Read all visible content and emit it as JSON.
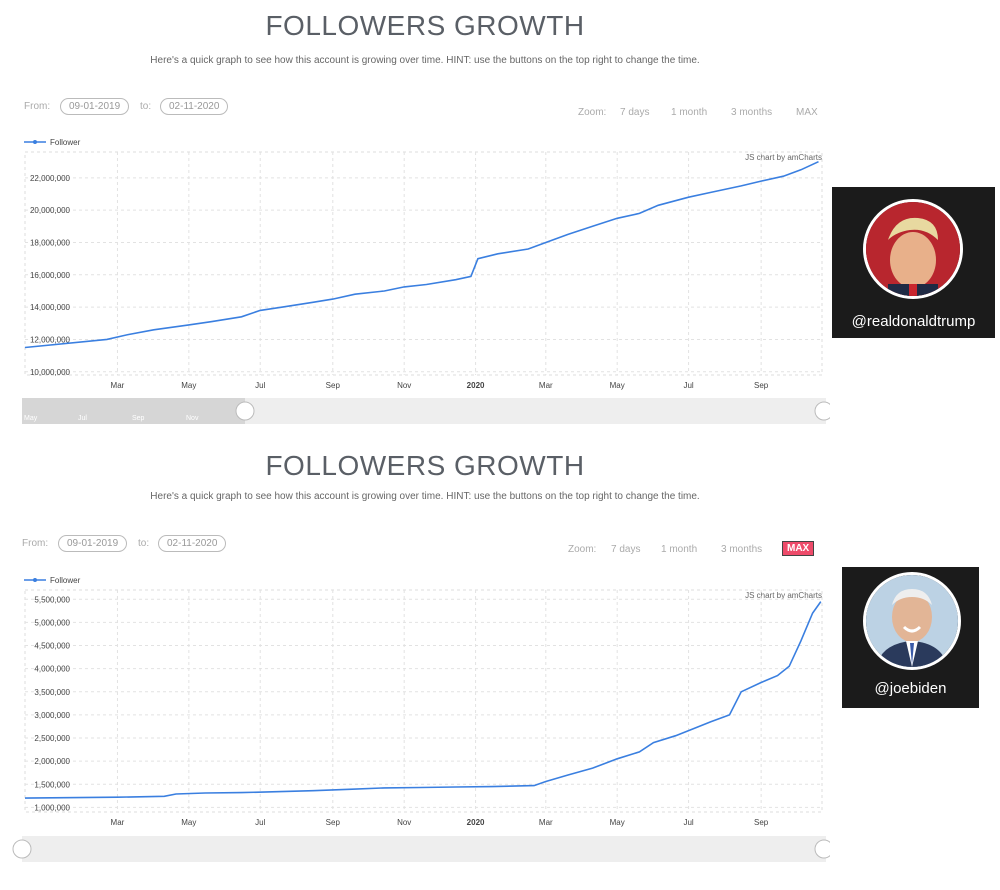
{
  "panels": [
    {
      "title": "FOLLOWERS GROWTH",
      "subtitle": "Here's a quick graph to see how this account is growing over time. HINT: use the buttons on the top right to change the time.",
      "from_label": "From:",
      "from_date": "09-01-2019",
      "to_label": "to:",
      "to_date": "02-11-2020",
      "zoom_label": "Zoom:",
      "zoom_options": [
        "7 days",
        "1 month",
        "3 months",
        "MAX"
      ],
      "active_zoom": "",
      "credit": "JS chart by amCharts",
      "scrollbar_labels": [
        "May",
        "Jul",
        "Sep",
        "Nov"
      ],
      "avatar_handle": "@realdonaldtrump",
      "avatar_bg": "#8a1620",
      "chart_data": {
        "type": "line",
        "title": "",
        "xlabel": "",
        "ylabel": "",
        "legend": "top-left",
        "grid": true,
        "series": [
          {
            "name": "Follower",
            "color": "#3a7fe0",
            "x": [
              "2019-02-01",
              "2019-02-20",
              "2019-03-10",
              "2019-04-01",
              "2019-05-01",
              "2019-05-20",
              "2019-06-15",
              "2019-07-01",
              "2019-07-20",
              "2019-08-15",
              "2019-09-01",
              "2019-09-20",
              "2019-10-15",
              "2019-11-01",
              "2019-11-20",
              "2019-12-15",
              "2019-12-28",
              "2020-01-03",
              "2020-01-20",
              "2020-02-15",
              "2020-03-01",
              "2020-03-20",
              "2020-04-10",
              "2020-05-01",
              "2020-05-20",
              "2020-06-05",
              "2020-07-01",
              "2020-07-20",
              "2020-08-15",
              "2020-09-01",
              "2020-09-20",
              "2020-10-05",
              "2020-10-20"
            ],
            "y": [
              11500000,
              12000000,
              12300000,
              12600000,
              12900000,
              13100000,
              13400000,
              13800000,
              14000000,
              14300000,
              14500000,
              14800000,
              15000000,
              15250000,
              15400000,
              15700000,
              15900000,
              17000000,
              17300000,
              17600000,
              18000000,
              18500000,
              19000000,
              19500000,
              19800000,
              20300000,
              20800000,
              21100000,
              21500000,
              21800000,
              22100000,
              22500000,
              23000000
            ]
          }
        ],
        "xlim": [
          "2019-01-28",
          "2020-10-23"
        ],
        "x_ticks": [
          {
            "date": "2019-03-01",
            "label": "Mar"
          },
          {
            "date": "2019-05-01",
            "label": "May"
          },
          {
            "date": "2019-07-01",
            "label": "Jul"
          },
          {
            "date": "2019-09-01",
            "label": "Sep"
          },
          {
            "date": "2019-11-01",
            "label": "Nov"
          },
          {
            "date": "2020-01-01",
            "label": "2020",
            "bold": true
          },
          {
            "date": "2020-03-01",
            "label": "Mar"
          },
          {
            "date": "2020-05-01",
            "label": "May"
          },
          {
            "date": "2020-07-01",
            "label": "Jul"
          },
          {
            "date": "2020-09-01",
            "label": "Sep"
          }
        ],
        "ylim": [
          9800000,
          23600000
        ],
        "y_ticks": [
          10000000,
          12000000,
          14000000,
          16000000,
          18000000,
          20000000,
          22000000
        ],
        "y_tick_labels": [
          "10,000,000",
          "12,000,000",
          "14,000,000",
          "16,000,000",
          "18,000,000",
          "20,000,000",
          "22,000,000"
        ]
      }
    },
    {
      "title": "FOLLOWERS GROWTH",
      "subtitle": "Here's a quick graph to see how this account is growing over time. HINT: use the buttons on the top right to change the time.",
      "from_label": "From:",
      "from_date": "09-01-2019",
      "to_label": "to:",
      "to_date": "02-11-2020",
      "zoom_label": "Zoom:",
      "zoom_options": [
        "7 days",
        "1 month",
        "3 months",
        "MAX"
      ],
      "active_zoom": "MAX",
      "credit": "JS chart by amCharts",
      "scrollbar_labels": [],
      "avatar_handle": "@joebiden",
      "avatar_bg": "#5a4a3e",
      "chart_data": {
        "type": "line",
        "title": "",
        "xlabel": "",
        "ylabel": "",
        "legend": "top-left",
        "grid": true,
        "series": [
          {
            "name": "Follower",
            "color": "#3a7fe0",
            "x": [
              "2019-02-01",
              "2019-03-01",
              "2019-04-10",
              "2019-04-20",
              "2019-05-15",
              "2019-06-15",
              "2019-07-15",
              "2019-08-15",
              "2019-09-15",
              "2019-10-15",
              "2019-11-15",
              "2019-12-15",
              "2020-01-15",
              "2020-02-20",
              "2020-03-01",
              "2020-03-20",
              "2020-04-10",
              "2020-05-01",
              "2020-05-20",
              "2020-06-01",
              "2020-06-20",
              "2020-07-05",
              "2020-07-20",
              "2020-08-05",
              "2020-08-15",
              "2020-09-01",
              "2020-09-15",
              "2020-09-25",
              "2020-10-05",
              "2020-10-15",
              "2020-10-22"
            ],
            "y": [
              1200000,
              1220000,
              1240000,
              1290000,
              1310000,
              1320000,
              1340000,
              1360000,
              1390000,
              1420000,
              1430000,
              1440000,
              1450000,
              1470000,
              1560000,
              1700000,
              1850000,
              2050000,
              2200000,
              2400000,
              2550000,
              2700000,
              2850000,
              3000000,
              3500000,
              3700000,
              3850000,
              4050000,
              4600000,
              5200000,
              5450000
            ]
          }
        ],
        "xlim": [
          "2019-01-28",
          "2020-10-23"
        ],
        "x_ticks": [
          {
            "date": "2019-03-01",
            "label": "Mar"
          },
          {
            "date": "2019-05-01",
            "label": "May"
          },
          {
            "date": "2019-07-01",
            "label": "Jul"
          },
          {
            "date": "2019-09-01",
            "label": "Sep"
          },
          {
            "date": "2019-11-01",
            "label": "Nov"
          },
          {
            "date": "2020-01-01",
            "label": "2020",
            "bold": true
          },
          {
            "date": "2020-03-01",
            "label": "Mar"
          },
          {
            "date": "2020-05-01",
            "label": "May"
          },
          {
            "date": "2020-07-01",
            "label": "Jul"
          },
          {
            "date": "2020-09-01",
            "label": "Sep"
          }
        ],
        "ylim": [
          900000,
          5700000
        ],
        "y_ticks": [
          1000000,
          1500000,
          2000000,
          2500000,
          3000000,
          3500000,
          4000000,
          4500000,
          5000000,
          5500000
        ],
        "y_tick_labels": [
          "1,000,000",
          "1,500,000",
          "2,000,000",
          "2,500,000",
          "3,000,000",
          "3,500,000",
          "4,000,000",
          "4,500,000",
          "5,000,000",
          "5,500,000"
        ]
      }
    }
  ]
}
